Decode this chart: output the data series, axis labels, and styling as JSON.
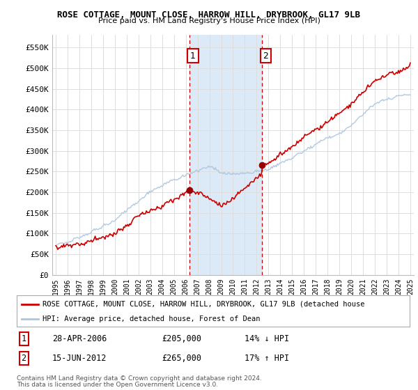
{
  "title": "ROSE COTTAGE, MOUNT CLOSE, HARROW HILL, DRYBROOK, GL17 9LB",
  "subtitle": "Price paid vs. HM Land Registry's House Price Index (HPI)",
  "ylim": [
    0,
    580000
  ],
  "yticks": [
    0,
    50000,
    100000,
    150000,
    200000,
    250000,
    300000,
    350000,
    400000,
    450000,
    500000,
    550000
  ],
  "ytick_labels": [
    "£0",
    "£50K",
    "£100K",
    "£150K",
    "£200K",
    "£250K",
    "£300K",
    "£350K",
    "£400K",
    "£450K",
    "£500K",
    "£550K"
  ],
  "xlim_start": 1994.7,
  "xlim_end": 2025.3,
  "sale1_x": 2006.3,
  "sale1_y": 205000,
  "sale1_label": "1",
  "sale1_date": "28-APR-2006",
  "sale1_price": "£205,000",
  "sale1_pct": "14% ↓ HPI",
  "sale2_x": 2012.46,
  "sale2_y": 265000,
  "sale2_label": "2",
  "sale2_date": "15-JUN-2012",
  "sale2_price": "£265,000",
  "sale2_pct": "17% ↑ HPI",
  "highlight_color": "#dce9f7",
  "vline_color": "#cc0000",
  "red_line_color": "#cc0000",
  "blue_line_color": "#aac4e0",
  "background_color": "#ffffff",
  "grid_color": "#dddddd",
  "legend_red_label": "ROSE COTTAGE, MOUNT CLOSE, HARROW HILL, DRYBROOK, GL17 9LB (detached house",
  "legend_blue_label": "HPI: Average price, detached house, Forest of Dean",
  "footer1": "Contains HM Land Registry data © Crown copyright and database right 2024.",
  "footer2": "This data is licensed under the Open Government Licence v3.0."
}
